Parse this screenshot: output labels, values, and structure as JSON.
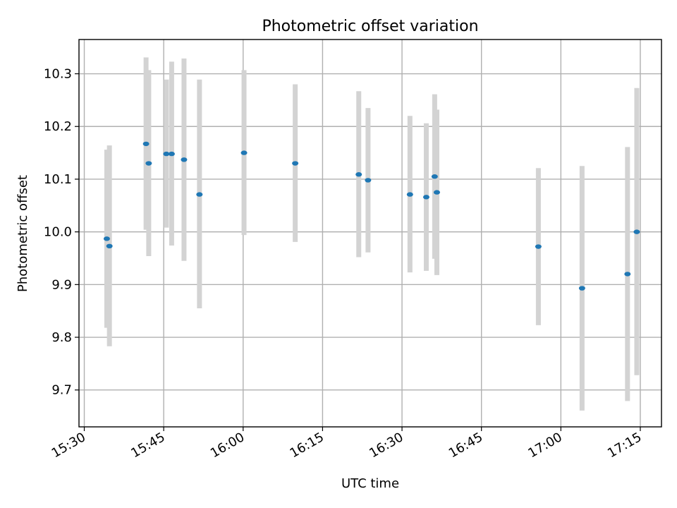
{
  "chart_data": {
    "type": "scatter",
    "title": "Photometric offset variation",
    "xlabel": "UTC time",
    "ylabel": "Photometric offset",
    "xlim": [
      "15:29:00",
      "17:19:00"
    ],
    "ylim": [
      9.63,
      10.365
    ],
    "x_ticks": [
      "15:30",
      "15:45",
      "16:00",
      "16:15",
      "16:30",
      "16:45",
      "17:00",
      "17:15"
    ],
    "y_ticks": [
      "9.7",
      "9.8",
      "9.9",
      "10.0",
      "10.1",
      "10.2",
      "10.3"
    ],
    "grid": true,
    "error_bar_color": "#d3d3d3",
    "marker_color": "#1f77b4",
    "points": [
      {
        "time": "15:34:15",
        "y": 9.987,
        "err_low": 9.818,
        "err_high": 10.156
      },
      {
        "time": "15:34:45",
        "y": 9.973,
        "err_low": 9.783,
        "err_high": 10.164
      },
      {
        "time": "15:41:40",
        "y": 10.167,
        "err_low": 10.004,
        "err_high": 10.331
      },
      {
        "time": "15:42:10",
        "y": 10.13,
        "err_low": 9.954,
        "err_high": 10.307
      },
      {
        "time": "15:45:30",
        "y": 10.148,
        "err_low": 10.008,
        "err_high": 10.289
      },
      {
        "time": "15:46:30",
        "y": 10.148,
        "err_low": 9.974,
        "err_high": 10.323
      },
      {
        "time": "15:48:50",
        "y": 10.137,
        "err_low": 9.945,
        "err_high": 10.329
      },
      {
        "time": "15:51:45",
        "y": 10.071,
        "err_low": 9.855,
        "err_high": 10.289
      },
      {
        "time": "16:00:10",
        "y": 10.15,
        "err_low": 9.994,
        "err_high": 10.307
      },
      {
        "time": "16:09:50",
        "y": 10.13,
        "err_low": 9.981,
        "err_high": 10.28
      },
      {
        "time": "16:21:50",
        "y": 10.109,
        "err_low": 9.952,
        "err_high": 10.267
      },
      {
        "time": "16:23:35",
        "y": 10.098,
        "err_low": 9.961,
        "err_high": 10.235
      },
      {
        "time": "16:31:30",
        "y": 10.071,
        "err_low": 9.923,
        "err_high": 10.22
      },
      {
        "time": "16:34:35",
        "y": 10.066,
        "err_low": 9.926,
        "err_high": 10.206
      },
      {
        "time": "16:36:10",
        "y": 10.105,
        "err_low": 9.949,
        "err_high": 10.261
      },
      {
        "time": "16:36:35",
        "y": 10.075,
        "err_low": 9.918,
        "err_high": 10.232
      },
      {
        "time": "16:55:45",
        "y": 9.972,
        "err_low": 9.823,
        "err_high": 10.121
      },
      {
        "time": "17:04:00",
        "y": 9.893,
        "err_low": 9.661,
        "err_high": 10.125
      },
      {
        "time": "17:12:35",
        "y": 9.92,
        "err_low": 9.679,
        "err_high": 10.161
      },
      {
        "time": "17:14:20",
        "y": 10.0,
        "err_low": 9.728,
        "err_high": 10.273
      }
    ]
  }
}
